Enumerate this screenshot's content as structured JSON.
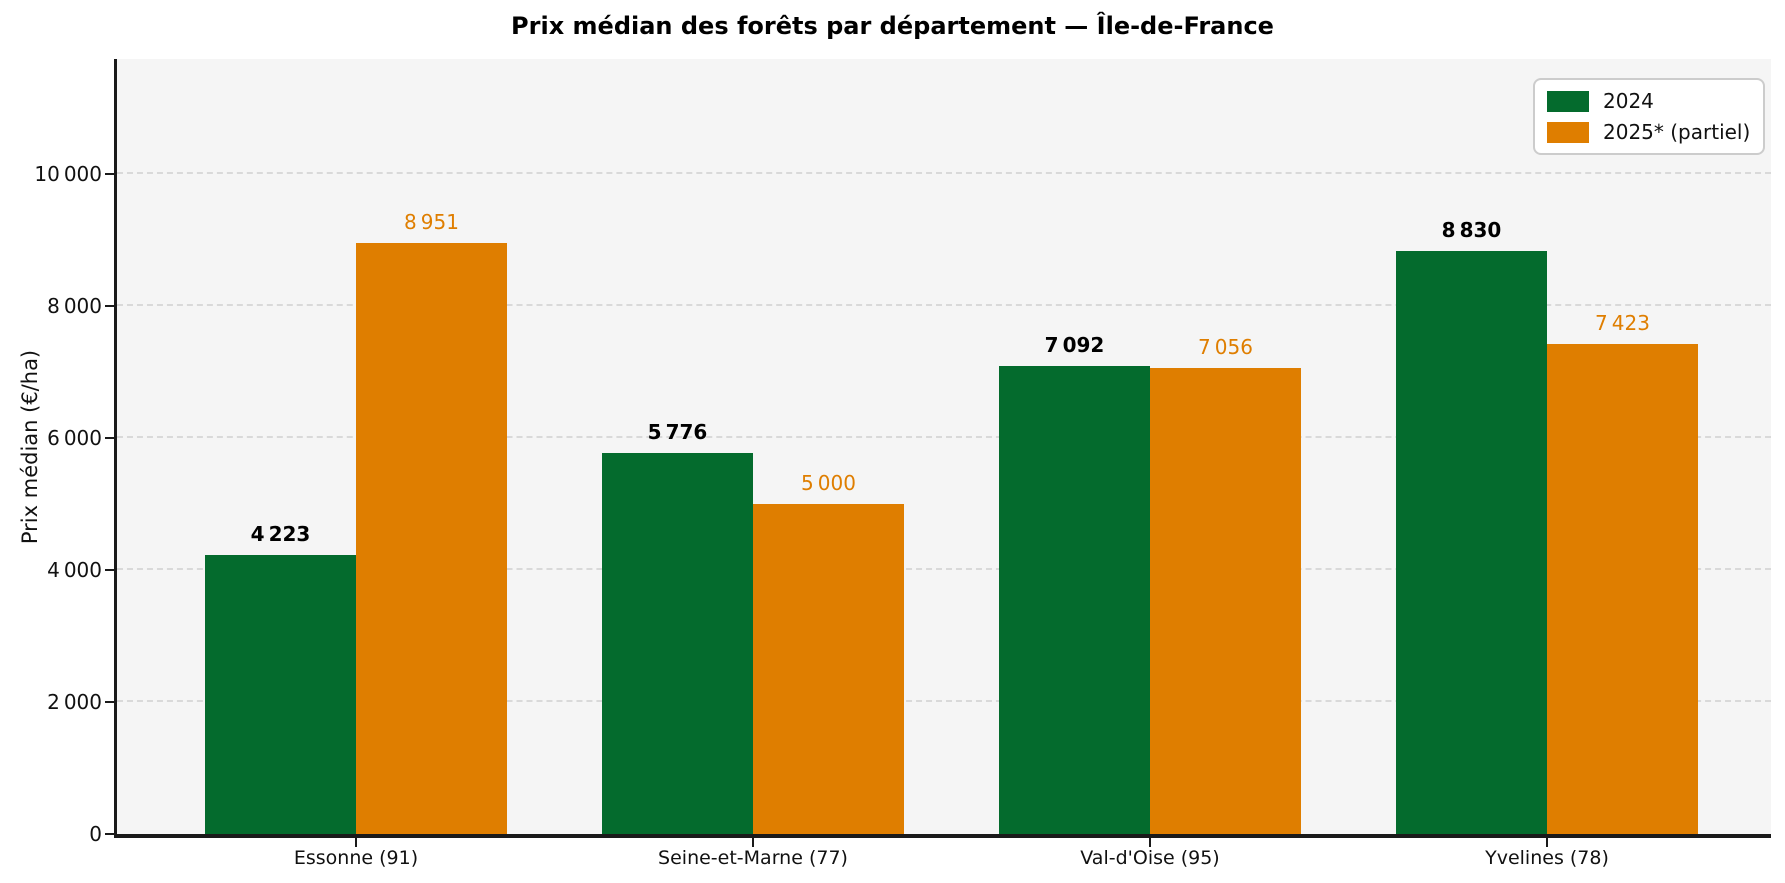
{
  "title": "Prix médian des forêts par département — Île-de-France",
  "chart_data": {
    "type": "bar",
    "title": "Prix médian des forêts par département — Île-de-France",
    "xlabel": "",
    "ylabel": "Prix médian (€/ha)",
    "categories": [
      "Essonne (91)",
      "Seine-et-Marne (77)",
      "Val-d'Oise (95)",
      "Yvelines (78)"
    ],
    "series": [
      {
        "name": "2024",
        "color": "#046b2d",
        "values": [
          4223,
          5776,
          7092,
          8830
        ],
        "value_labels": [
          "4 223",
          "5 776",
          "7 092",
          "8 830"
        ]
      },
      {
        "name": "2025* (partiel)",
        "color": "#df7e00",
        "values": [
          8951,
          5000,
          7056,
          7423
        ],
        "value_labels": [
          "8 951",
          "5 000",
          "7 056",
          "7 423"
        ]
      }
    ],
    "ylim": [
      0,
      11740
    ],
    "yticks": [
      0,
      2000,
      4000,
      6000,
      8000,
      10000
    ],
    "ytick_labels": [
      "0",
      "2 000",
      "4 000",
      "6 000",
      "8 000",
      "10 000"
    ],
    "grid": "horizontal dashed",
    "legend_position": "upper right",
    "plot_background": "#f5f5f5",
    "gridline_color": "#d9d9d9",
    "spine_color": "#1a1a1a"
  },
  "legend": {
    "items": [
      {
        "label": "2024",
        "color": "#046b2d"
      },
      {
        "label": "2025* (partiel)",
        "color": "#df7e00"
      }
    ]
  }
}
